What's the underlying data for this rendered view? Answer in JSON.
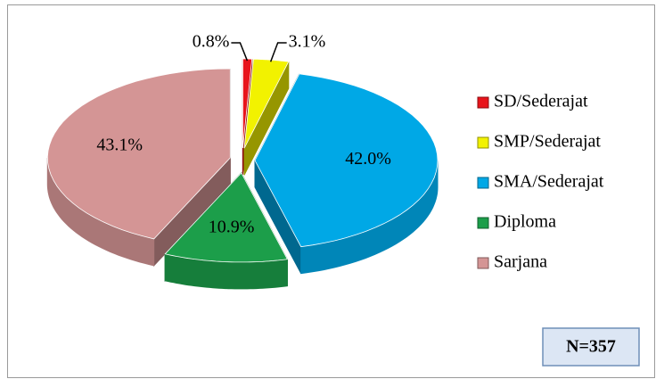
{
  "chart_data": {
    "type": "pie",
    "categories": [
      "SD/Sederajat",
      "SMP/Sederajat",
      "SMA/Sederajat",
      "Diploma",
      "Sarjana"
    ],
    "values": [
      0.8,
      3.1,
      42.0,
      10.9,
      43.1
    ],
    "value_labels": [
      "0.8%",
      "3.1%",
      "42.0%",
      "10.9%",
      "43.1%"
    ],
    "colors": [
      "#e8141b",
      "#f2f200",
      "#00a8e6",
      "#1c9e4a",
      "#d49595"
    ],
    "legend": "right",
    "annotation": "N=357"
  }
}
